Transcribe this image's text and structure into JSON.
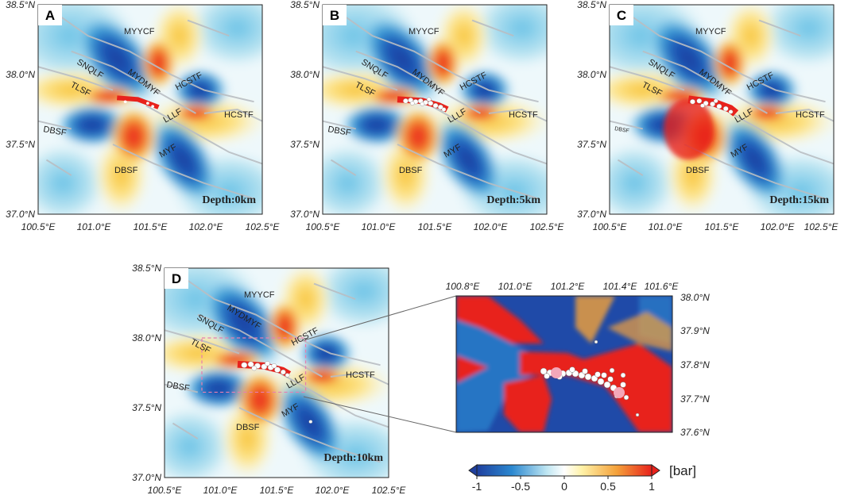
{
  "panels": [
    {
      "id": "A",
      "label": "A",
      "depth": "Depth:0km",
      "lat_ticks": [
        "38.5°N",
        "38.0°N",
        "37.5°N",
        "37.0°N"
      ],
      "lon_ticks": [
        "100.5°E",
        "101.0°E",
        "101.5°E",
        "102.0°E",
        "102.5°E"
      ],
      "fault_labels": [
        "MYYCF",
        "MYDMYF",
        "SNQLF",
        "TLSF",
        "HCSTF",
        "HCSTF",
        "LLLF",
        "DBSF",
        "MYF",
        "DBSF"
      ]
    },
    {
      "id": "B",
      "label": "B",
      "depth": "Depth:5km",
      "lat_ticks": [
        "38.5°N",
        "38.0°N",
        "37.5°N",
        "37.0°N"
      ],
      "lon_ticks": [
        "100.5°E",
        "101.0°E",
        "101.5°E",
        "102.0°E",
        "102.5°E"
      ],
      "fault_labels": [
        "MYYCF",
        "MYDMYF",
        "SNQLF",
        "TLSF",
        "HCSTF",
        "HCSTF",
        "LLLF",
        "DBSF",
        "MYF",
        "DBSF"
      ]
    },
    {
      "id": "C",
      "label": "C",
      "depth": "Depth:15km",
      "lat_ticks": [
        "38.5°N",
        "38.0°N",
        "37.5°N",
        "37.0°N"
      ],
      "lon_ticks": [
        "100.5°E",
        "101.0°E",
        "101.5°E",
        "102.0°E",
        "102.5°E"
      ],
      "fault_labels": [
        "MYYCF",
        "MYDMYF",
        "SNQLF",
        "TLSF",
        "HCSTF",
        "HCSTF",
        "LLLF",
        "DBSF",
        "MYF",
        "DBSF"
      ]
    },
    {
      "id": "D",
      "label": "D",
      "depth": "Depth:10km",
      "lat_ticks": [
        "38.5°N",
        "38.0°N",
        "37.5°N",
        "37.0°N"
      ],
      "lon_ticks": [
        "100.5°E",
        "101.0°E",
        "101.5°E",
        "102.0°E",
        "102.5°E"
      ],
      "fault_labels": [
        "MYYCF",
        "MYDMYF",
        "SNQLF",
        "TLSF",
        "HCSTF",
        "HCSTF",
        "LLLF",
        "DBSF",
        "MYF",
        "DBSF"
      ]
    }
  ],
  "inset": {
    "lon_ticks": [
      "100.8°E",
      "101.0°E",
      "101.2°E",
      "101.4°E",
      "101.6°E"
    ],
    "lat_ticks": [
      "38.0°N",
      "37.9°N",
      "37.8°N",
      "37.7°N",
      "37.6°N"
    ]
  },
  "colorbar": {
    "ticks": [
      "-1",
      "-0.5",
      "0",
      "0.5",
      "1"
    ],
    "unit": "[bar]",
    "colors": [
      "#1f3f9e",
      "#2b88d0",
      "#bfe6f2",
      "#ffffff",
      "#fff2a8",
      "#f4a13a",
      "#e8221c"
    ]
  }
}
